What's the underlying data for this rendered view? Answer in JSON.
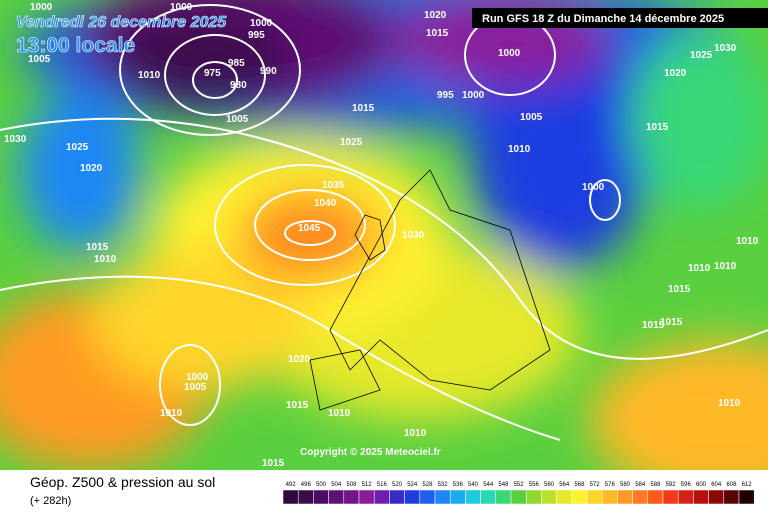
{
  "header": {
    "date": "Vendredi 26 decembre 2025",
    "time": "13:00 locale",
    "run": "Run GFS 18 Z du Dimanche 14 décembre 2025"
  },
  "map": {
    "copyright": "Copyright © 2025 Meteociel.fr",
    "isobar_labels": [
      1000,
      1005,
      1010,
      995,
      1000,
      1000,
      985,
      975,
      980,
      990,
      1005,
      1020,
      1015,
      1000,
      995,
      1000,
      1015,
      1005,
      1010,
      1025,
      1030,
      1025,
      1020,
      1035,
      1040,
      1045,
      1030,
      1000,
      1030,
      1025,
      1020,
      1015,
      1010,
      1010,
      1010,
      1015,
      1015,
      1015,
      1015,
      1010,
      1020,
      1005,
      1000,
      1015,
      1010,
      1010,
      1010,
      1015,
      1010
    ]
  },
  "footer": {
    "title": "Géop. Z500 & pression au sol",
    "lead": "(+ 282h)"
  },
  "legend": {
    "ticks": [
      492,
      496,
      500,
      504,
      508,
      512,
      516,
      520,
      524,
      528,
      532,
      536,
      540,
      544,
      548,
      552,
      556,
      560,
      564,
      568,
      572,
      576,
      580,
      584,
      588,
      592,
      596,
      600,
      604,
      608,
      612
    ],
    "colors": [
      "#2d0a3a",
      "#3c0b4e",
      "#4b0c62",
      "#5f1075",
      "#731487",
      "#8a1b9a",
      "#6a1fb0",
      "#3a2ac8",
      "#1e3ee0",
      "#1f5ff0",
      "#1e86f5",
      "#1eaaf0",
      "#22c8e0",
      "#28d8b0",
      "#38d878",
      "#5ad040",
      "#8ed830",
      "#bde02a",
      "#e6e82a",
      "#fff030",
      "#ffd52a",
      "#ffb828",
      "#ff9a24",
      "#ff7a20",
      "#ff5a1c",
      "#f03a18",
      "#d82014",
      "#b81010",
      "#8c0808",
      "#5a0404",
      "#200000"
    ]
  }
}
